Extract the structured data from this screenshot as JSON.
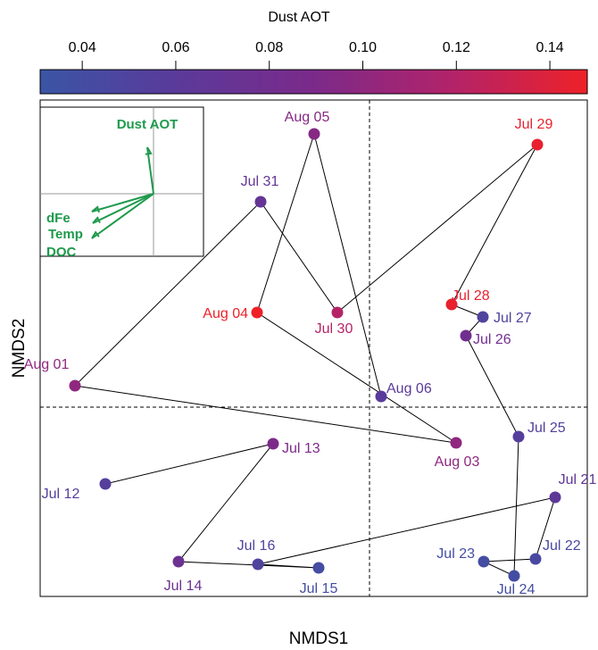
{
  "chart_data": {
    "type": "scatter",
    "xlabel": "NMDS1",
    "ylabel": "NMDS2",
    "xlim": [
      -3.69,
      2.44
    ],
    "ylim": [
      -2.12,
      3.44
    ],
    "reference_lines": {
      "x": 0,
      "y": 0
    },
    "line_color": "#000000",
    "labels": [
      "Jul 12",
      "Jul 13",
      "Jul 14",
      "Jul 15",
      "Jul 16",
      "Jul 21",
      "Jul 22",
      "Jul 23",
      "Jul 24",
      "Jul 25",
      "Jul 26",
      "Jul 27",
      "Jul 28",
      "Jul 29",
      "Jul 30",
      "Jul 31",
      "Aug 01",
      "Aug 03",
      "Aug 04",
      "Aug 05",
      "Aug 06"
    ],
    "x": [
      -2.96,
      -1.08,
      -2.14,
      -0.57,
      -1.25,
      2.08,
      1.86,
      1.28,
      1.62,
      1.67,
      1.08,
      1.27,
      0.92,
      1.88,
      -0.36,
      -1.22,
      -3.3,
      0.97,
      -1.26,
      -0.62,
      0.13
    ],
    "y": [
      -0.86,
      -0.41,
      -1.73,
      -1.8,
      -1.76,
      -1.01,
      -1.7,
      -1.73,
      -1.89,
      -0.33,
      0.8,
      1.01,
      1.15,
      2.94,
      1.06,
      2.3,
      0.24,
      -0.4,
      1.06,
      3.06,
      0.12
    ],
    "dust_aot": [
      0.055,
      0.09,
      0.075,
      0.04,
      0.05,
      0.065,
      0.045,
      0.04,
      0.04,
      0.055,
      0.08,
      0.05,
      0.145,
      0.145,
      0.12,
      0.07,
      0.1,
      0.1,
      0.148,
      0.095,
      0.06
    ],
    "colorbar": {
      "label": "Dust AOT",
      "lim": [
        0.031,
        0.148
      ],
      "ticks": [
        0.04,
        0.06,
        0.08,
        {
          "value": 0.1,
          "label": "0.10"
        },
        0.12,
        0.14
      ],
      "colormap": [
        "#3a55a5",
        "#5a3a9a",
        "#7b2a8a",
        "#b2236a",
        "#ee2128"
      ]
    },
    "inset": {
      "xlim": [
        -1.27,
        0.56
      ],
      "ylim": [
        -0.7,
        0.97
      ],
      "color": "#1e9a4c",
      "vectors": [
        {
          "name": "Dust AOT",
          "x": -0.07,
          "y": 0.52
        },
        {
          "name": "dFe",
          "x": -0.69,
          "y": -0.2
        },
        {
          "name": "Temp",
          "x": -0.68,
          "y": -0.33
        },
        {
          "name": "DOC",
          "x": -0.69,
          "y": -0.5
        }
      ]
    }
  }
}
